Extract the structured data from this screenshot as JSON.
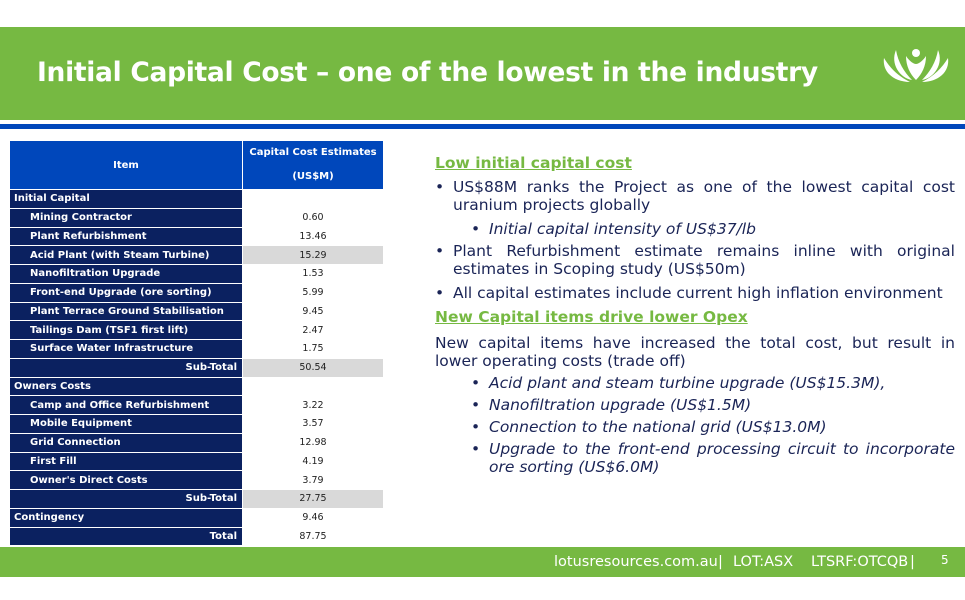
{
  "header": {
    "title": "Initial Capital Cost – one of the lowest in the industry",
    "logo": "lotus-logo"
  },
  "table": {
    "col_item": "Item",
    "col_cost_line1": "Capital Cost Estimates",
    "col_cost_line2": "(US$M)",
    "rows": [
      {
        "type": "section",
        "name": "Initial Capital",
        "value": ""
      },
      {
        "type": "item",
        "name": "Mining Contractor",
        "value": "0.60"
      },
      {
        "type": "item",
        "name": "Plant Refurbishment",
        "value": "13.46"
      },
      {
        "type": "item",
        "name": "Acid Plant (with Steam Turbine)",
        "value": "15.29",
        "shaded": true
      },
      {
        "type": "item",
        "name": "Nanofiltration Upgrade",
        "value": "1.53"
      },
      {
        "type": "item",
        "name": "Front-end Upgrade (ore sorting)",
        "value": "5.99"
      },
      {
        "type": "item",
        "name": "Plant Terrace Ground Stabilisation",
        "value": "9.45"
      },
      {
        "type": "item",
        "name": "Tailings Dam (TSF1 first lift)",
        "value": "2.47"
      },
      {
        "type": "item",
        "name": "Surface Water Infrastructure",
        "value": "1.75"
      },
      {
        "type": "subtotal",
        "name": "Sub-Total",
        "value": "50.54",
        "shaded": true
      },
      {
        "type": "section",
        "name": "Owners Costs",
        "value": ""
      },
      {
        "type": "item",
        "name": "Camp and Office Refurbishment",
        "value": "3.22"
      },
      {
        "type": "item",
        "name": "Mobile Equipment",
        "value": "3.57"
      },
      {
        "type": "item",
        "name": "Grid Connection",
        "value": "12.98"
      },
      {
        "type": "item",
        "name": "First Fill",
        "value": "4.19"
      },
      {
        "type": "item",
        "name": "Owner's Direct Costs",
        "value": "3.79"
      },
      {
        "type": "subtotal",
        "name": "Sub-Total",
        "value": "27.75",
        "shaded": true
      },
      {
        "type": "section",
        "name": "Contingency",
        "value": "9.46"
      },
      {
        "type": "total",
        "name": "Total",
        "value": "87.75"
      }
    ]
  },
  "right": {
    "heading1": "Low initial capital cost",
    "bullet1": "US$88M ranks the Project as one of the lowest capital cost uranium projects globally",
    "sub1": "Initial capital intensity of US$37/lb",
    "bullet2": "Plant Refurbishment estimate remains inline with original estimates in Scoping study (US$50m)",
    "bullet3": "All capital estimates include current high inflation environment",
    "heading2": "New Capital items drive lower Opex",
    "para": "New capital items have increased the total cost, but result in lower operating costs (trade off)",
    "subs": [
      "Acid plant and steam turbine upgrade (US$15.3M),",
      "Nanofiltration upgrade (US$1.5M)",
      "Connection to the national grid (US$13.0M)",
      "Upgrade to the front-end processing circuit to incorporate ore sorting (US$6.0M)"
    ]
  },
  "footer": {
    "website": "lotusresources.com.au",
    "sep1": "|",
    "asx": "LOT:ASX",
    "otc": "LTSRF:OTCQB",
    "sep2": "|",
    "page": "5"
  },
  "colors": {
    "green": "#76b942",
    "blue": "#0047bb",
    "navy": "#0b2160"
  }
}
